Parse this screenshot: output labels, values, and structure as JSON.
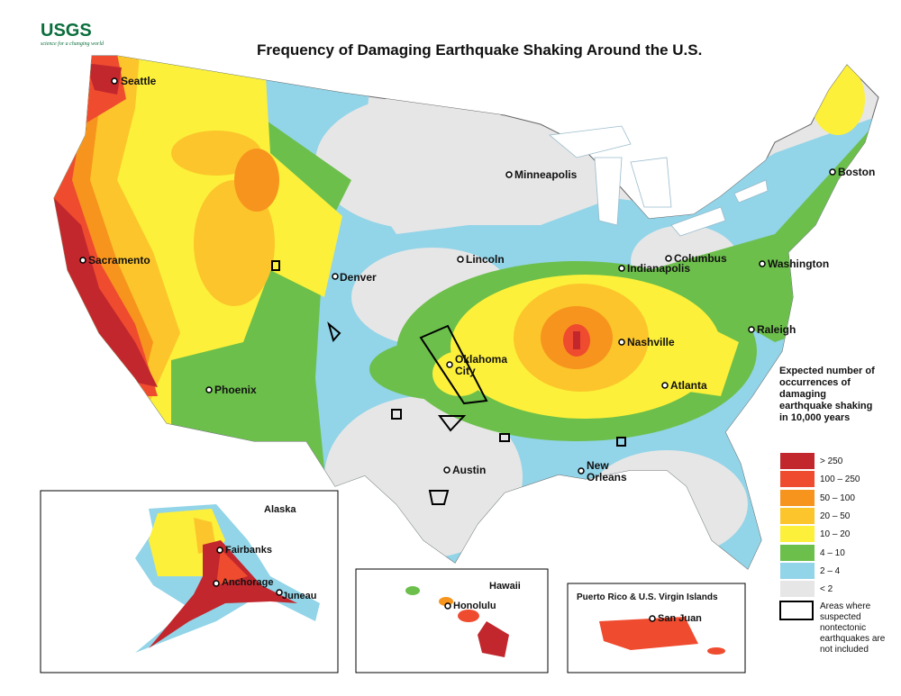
{
  "header": {
    "logo": "USGS",
    "tagline": "science for a changing world",
    "title": "Frequency of Damaging Earthquake Shaking Around the U.S."
  },
  "cities": [
    "Seattle",
    "Sacramento",
    "Phoenix",
    "Denver",
    "Minneapolis",
    "Lincoln",
    "Oklahoma City",
    "Austin",
    "Indianapolis",
    "Columbus",
    "Washington",
    "Boston",
    "Nashville",
    "Atlanta",
    "Raleigh",
    "New Orleans"
  ],
  "insets": {
    "alaska": {
      "title": "Alaska",
      "cities": [
        "Fairbanks",
        "Anchorage",
        "Juneau"
      ]
    },
    "hawaii": {
      "title": "Hawaii",
      "cities": [
        "Honolulu"
      ]
    },
    "puerto_rico": {
      "title": "Puerto Rico & U.S. Virgin Islands",
      "cities": [
        "San Juan"
      ]
    }
  },
  "legend": {
    "title": "Expected number of occurrences of damaging earthquake shaking in 10,000 years",
    "items": [
      {
        "label": "> 250",
        "color": "#c1272d"
      },
      {
        "label": "100 – 250",
        "color": "#ef4b2f"
      },
      {
        "label": "50 – 100",
        "color": "#f7941d"
      },
      {
        "label": "20 – 50",
        "color": "#fcc52b"
      },
      {
        "label": "10 – 20",
        "color": "#fcf03a"
      },
      {
        "label": "4 – 10",
        "color": "#6cbf4b"
      },
      {
        "label": "2 – 4",
        "color": "#92d4e8"
      },
      {
        "label": "< 2",
        "color": "#e6e6e6"
      }
    ],
    "note": "Areas where suspected nontectonic earthquakes are not included"
  }
}
